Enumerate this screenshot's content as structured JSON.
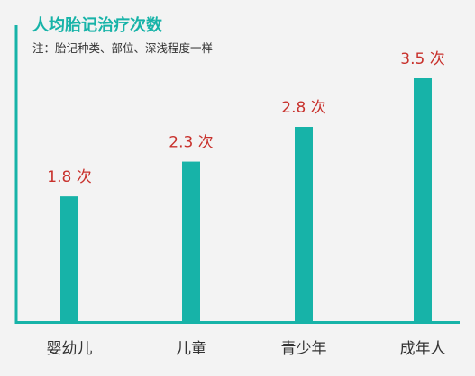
{
  "chart_data": {
    "type": "bar",
    "title": "人均胎记治疗次数",
    "subtitle": "注：胎记种类、部位、深浅程度一样",
    "categories": [
      "婴幼儿",
      "儿童",
      "青少年",
      "成年人"
    ],
    "values": [
      1.8,
      2.3,
      2.8,
      3.5
    ],
    "value_labels": [
      "1.8 次",
      "2.3 次",
      "2.8 次",
      "3.5 次"
    ],
    "xlabel": "",
    "ylabel": "",
    "ylim": [
      0,
      4.0
    ],
    "grid": false,
    "colors": {
      "bar": "#17b3a8",
      "axis": "#17b3a8",
      "title": "#17b3a8",
      "value_label": "#c8312c",
      "background": "#f3f3f3"
    }
  }
}
